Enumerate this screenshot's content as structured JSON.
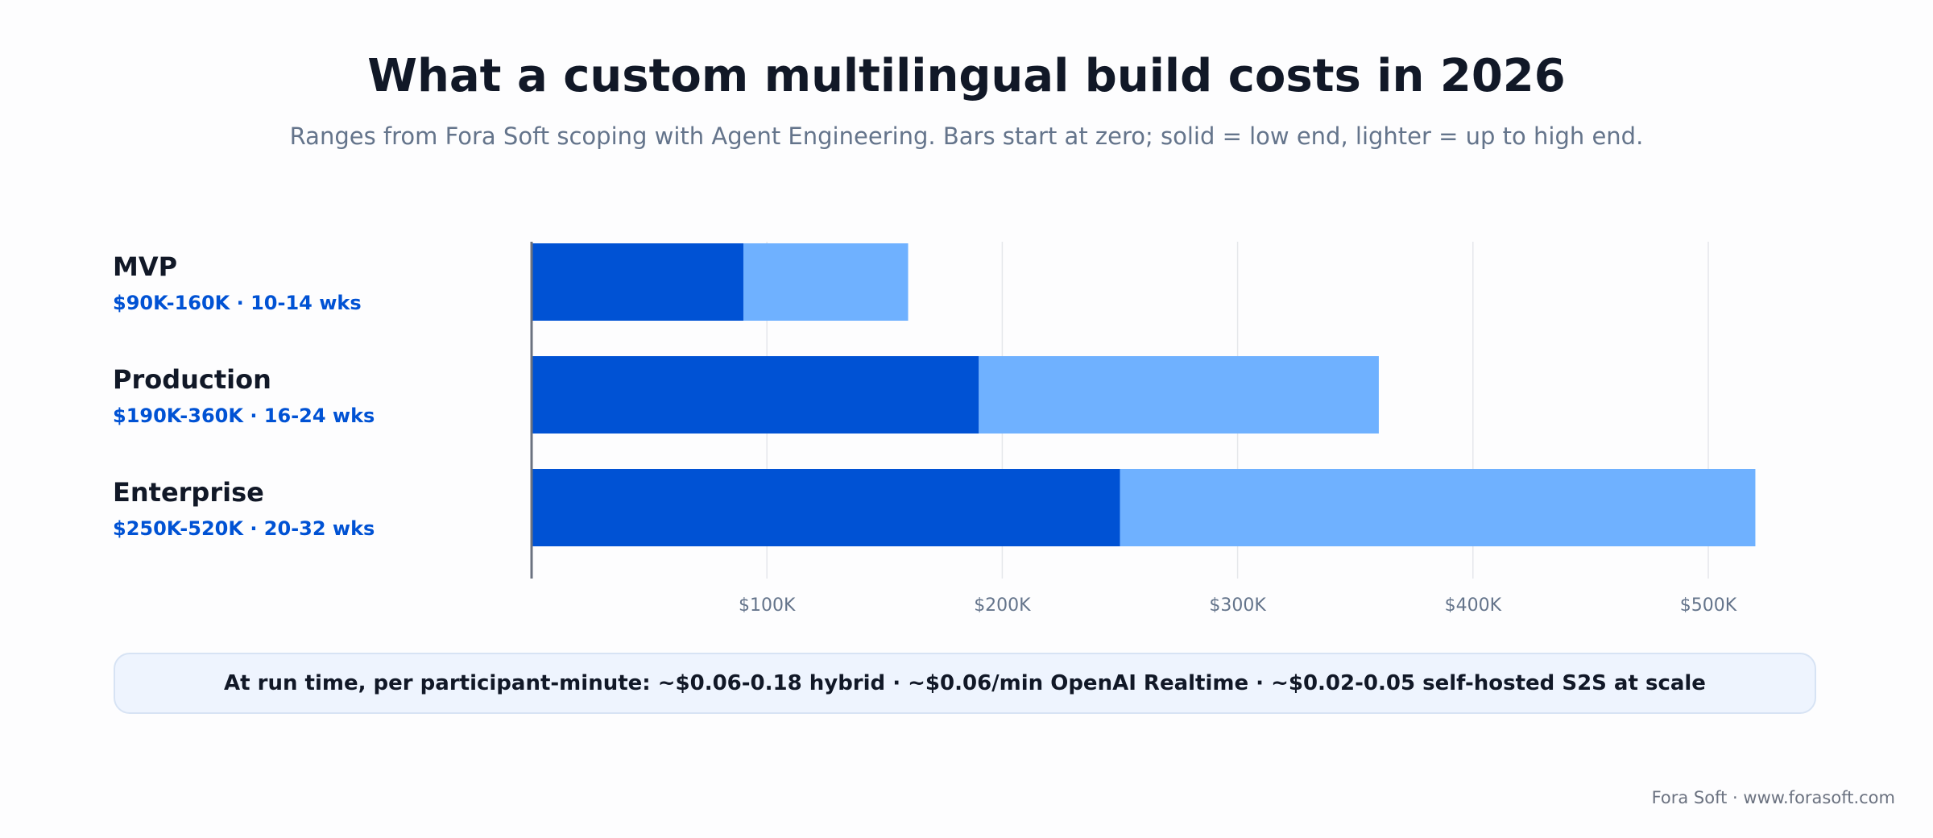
{
  "title": "What a custom multilingual build costs in 2026",
  "subtitle": "Ranges from Fora Soft scoping with Agent Engineering. Bars start at zero; solid = low end, lighter = up to high end.",
  "note": "At run time, per participant-minute: ~$0.06-0.18 hybrid · ~$0.06/min OpenAI Realtime · ~$0.02-0.05 self-hosted S2S at scale",
  "footer": "Fora Soft · www.forasoft.com",
  "colors": {
    "low": "#0052d4",
    "high": "#6fb1ff",
    "grid": "#e5e7eb",
    "axis": "#6b7280"
  },
  "chart_data": {
    "type": "bar",
    "orientation": "horizontal",
    "stacked_range": true,
    "categories": [
      "MVP",
      "Production",
      "Enterprise"
    ],
    "range_labels": [
      "$90K-160K · 10-14 wks",
      "$190K-360K · 16-24 wks",
      "$250K-520K · 20-32 wks"
    ],
    "series": [
      {
        "values": [
          90,
          190,
          250
        ],
        "color": "#0052d4"
      },
      {
        "values": [
          160,
          360,
          520
        ],
        "color": "#6fb1ff"
      }
    ],
    "xlim": [
      0,
      540
    ],
    "xticks": [
      100,
      200,
      300,
      400,
      500
    ],
    "xtick_labels": [
      "$100K",
      "$200K",
      "$300K",
      "$400K",
      "$500K"
    ],
    "grid": true
  }
}
